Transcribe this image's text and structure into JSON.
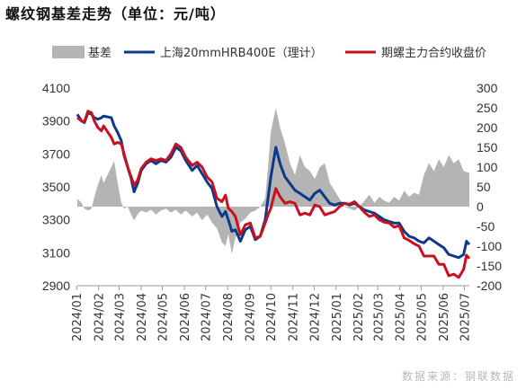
{
  "title": "螺纹钢基差走势（单位：元/吨）",
  "source": "数据来源：钢联数据",
  "chart_data": {
    "type": "line+area",
    "x": [
      "2024/01",
      "2024/02",
      "2024/03",
      "2024/04",
      "2024/05",
      "2024/06",
      "2024/07",
      "2024/08",
      "2024/09",
      "2024/10",
      "2024/11",
      "2024/12",
      "2025/01",
      "2025/02",
      "2025/03",
      "2025/04",
      "2025/05",
      "2025/06",
      "2025/07"
    ],
    "x_range": [
      "2024/01/02",
      "2025/07/08"
    ],
    "yleft": {
      "min": 2900,
      "max": 4100,
      "ticks": [
        2900,
        3100,
        3300,
        3500,
        3700,
        3900,
        4100
      ]
    },
    "yright": {
      "min": -200,
      "max": 300,
      "ticks": [
        -200,
        -150,
        -100,
        -50,
        0,
        50,
        100,
        150,
        200,
        250,
        300
      ]
    },
    "legend": {
      "position": "top"
    },
    "series": [
      {
        "name": "基差",
        "type": "area",
        "axis": "right",
        "color": "#b4b4b4",
        "points": [
          [
            "2024/01/02",
            20
          ],
          [
            "2024/01/08",
            10
          ],
          [
            "2024/01/12",
            -5
          ],
          [
            "2024/01/17",
            -10
          ],
          [
            "2024/01/22",
            -5
          ],
          [
            "2024/01/26",
            25
          ],
          [
            "2024/01/31",
            55
          ],
          [
            "2024/02/05",
            80
          ],
          [
            "2024/02/08",
            60
          ],
          [
            "2024/02/19",
            100
          ],
          [
            "2024/02/23",
            115
          ],
          [
            "2024/02/28",
            60
          ],
          [
            "2024/03/04",
            10
          ],
          [
            "2024/03/08",
            -5
          ],
          [
            "2024/03/13",
            0
          ],
          [
            "2024/03/18",
            -20
          ],
          [
            "2024/03/22",
            -35
          ],
          [
            "2024/03/27",
            -20
          ],
          [
            "2024/04/01",
            -10
          ],
          [
            "2024/04/08",
            -15
          ],
          [
            "2024/04/15",
            -8
          ],
          [
            "2024/04/22",
            -20
          ],
          [
            "2024/04/29",
            -10
          ],
          [
            "2024/05/06",
            -5
          ],
          [
            "2024/05/13",
            -15
          ],
          [
            "2024/05/20",
            -8
          ],
          [
            "2024/05/27",
            -20
          ],
          [
            "2024/06/03",
            -10
          ],
          [
            "2024/06/12",
            -25
          ],
          [
            "2024/06/19",
            -15
          ],
          [
            "2024/06/26",
            -35
          ],
          [
            "2024/07/03",
            -20
          ],
          [
            "2024/07/10",
            -40
          ],
          [
            "2024/07/17",
            -55
          ],
          [
            "2024/07/24",
            -90
          ],
          [
            "2024/07/29",
            -100
          ],
          [
            "2024/08/02",
            -70
          ],
          [
            "2024/08/07",
            -120
          ],
          [
            "2024/08/12",
            -80
          ],
          [
            "2024/08/19",
            -40
          ],
          [
            "2024/08/26",
            -30
          ],
          [
            "2024/09/02",
            -15
          ],
          [
            "2024/09/09",
            -10
          ],
          [
            "2024/09/16",
            0
          ],
          [
            "2024/09/23",
            20
          ],
          [
            "2024/09/27",
            100
          ],
          [
            "2024/10/01",
            190
          ],
          [
            "2024/10/08",
            250
          ],
          [
            "2024/10/14",
            200
          ],
          [
            "2024/10/21",
            160
          ],
          [
            "2024/10/28",
            110
          ],
          [
            "2024/11/04",
            80
          ],
          [
            "2024/11/11",
            130
          ],
          [
            "2024/11/18",
            100
          ],
          [
            "2024/11/25",
            90
          ],
          [
            "2024/12/02",
            70
          ],
          [
            "2024/12/09",
            100
          ],
          [
            "2024/12/16",
            110
          ],
          [
            "2024/12/23",
            60
          ],
          [
            "2024/12/30",
            40
          ],
          [
            "2025/01/06",
            20
          ],
          [
            "2025/01/13",
            0
          ],
          [
            "2025/01/20",
            -5
          ],
          [
            "2025/01/27",
            -10
          ],
          [
            "2025/02/03",
            0
          ],
          [
            "2025/02/10",
            15
          ],
          [
            "2025/02/17",
            30
          ],
          [
            "2025/02/24",
            10
          ],
          [
            "2025/03/03",
            25
          ],
          [
            "2025/03/10",
            15
          ],
          [
            "2025/03/17",
            10
          ],
          [
            "2025/03/24",
            25
          ],
          [
            "2025/03/31",
            15
          ],
          [
            "2025/04/07",
            40
          ],
          [
            "2025/04/14",
            25
          ],
          [
            "2025/04/21",
            35
          ],
          [
            "2025/04/28",
            30
          ],
          [
            "2025/05/05",
            80
          ],
          [
            "2025/05/12",
            110
          ],
          [
            "2025/05/19",
            90
          ],
          [
            "2025/05/26",
            120
          ],
          [
            "2025/06/02",
            100
          ],
          [
            "2025/06/09",
            130
          ],
          [
            "2025/06/16",
            110
          ],
          [
            "2025/06/23",
            120
          ],
          [
            "2025/06/30",
            90
          ],
          [
            "2025/07/08",
            85
          ]
        ]
      },
      {
        "name": "上海20mmHRB400E（理计）",
        "type": "line",
        "axis": "left",
        "color": "#0b3a8c",
        "points": [
          [
            "2024/01/02",
            3940
          ],
          [
            "2024/01/08",
            3900
          ],
          [
            "2024/01/12",
            3890
          ],
          [
            "2024/01/17",
            3950
          ],
          [
            "2024/01/22",
            3940
          ],
          [
            "2024/01/26",
            3920
          ],
          [
            "2024/01/31",
            3910
          ],
          [
            "2024/02/05",
            3920
          ],
          [
            "2024/02/08",
            3930
          ],
          [
            "2024/02/19",
            3920
          ],
          [
            "2024/02/23",
            3870
          ],
          [
            "2024/02/28",
            3830
          ],
          [
            "2024/03/04",
            3780
          ],
          [
            "2024/03/08",
            3690
          ],
          [
            "2024/03/13",
            3620
          ],
          [
            "2024/03/18",
            3550
          ],
          [
            "2024/03/22",
            3470
          ],
          [
            "2024/03/27",
            3520
          ],
          [
            "2024/04/01",
            3600
          ],
          [
            "2024/04/08",
            3640
          ],
          [
            "2024/04/15",
            3660
          ],
          [
            "2024/04/22",
            3640
          ],
          [
            "2024/04/29",
            3660
          ],
          [
            "2024/05/06",
            3650
          ],
          [
            "2024/05/13",
            3680
          ],
          [
            "2024/05/20",
            3740
          ],
          [
            "2024/05/27",
            3720
          ],
          [
            "2024/06/03",
            3660
          ],
          [
            "2024/06/12",
            3600
          ],
          [
            "2024/06/19",
            3630
          ],
          [
            "2024/06/26",
            3580
          ],
          [
            "2024/07/03",
            3530
          ],
          [
            "2024/07/10",
            3490
          ],
          [
            "2024/07/17",
            3380
          ],
          [
            "2024/07/24",
            3320
          ],
          [
            "2024/07/29",
            3350
          ],
          [
            "2024/08/02",
            3300
          ],
          [
            "2024/08/07",
            3230
          ],
          [
            "2024/08/12",
            3240
          ],
          [
            "2024/08/19",
            3170
          ],
          [
            "2024/08/26",
            3240
          ],
          [
            "2024/09/02",
            3260
          ],
          [
            "2024/09/09",
            3180
          ],
          [
            "2024/09/16",
            3200
          ],
          [
            "2024/09/23",
            3300
          ],
          [
            "2024/09/27",
            3430
          ],
          [
            "2024/10/01",
            3560
          ],
          [
            "2024/10/08",
            3740
          ],
          [
            "2024/10/14",
            3640
          ],
          [
            "2024/10/21",
            3560
          ],
          [
            "2024/10/28",
            3520
          ],
          [
            "2024/11/04",
            3480
          ],
          [
            "2024/11/11",
            3460
          ],
          [
            "2024/11/18",
            3440
          ],
          [
            "2024/11/25",
            3420
          ],
          [
            "2024/12/02",
            3460
          ],
          [
            "2024/12/09",
            3480
          ],
          [
            "2024/12/16",
            3440
          ],
          [
            "2024/12/23",
            3400
          ],
          [
            "2024/12/30",
            3390
          ],
          [
            "2025/01/06",
            3400
          ],
          [
            "2025/01/13",
            3400
          ],
          [
            "2025/01/20",
            3390
          ],
          [
            "2025/01/27",
            3400
          ],
          [
            "2025/02/03",
            3380
          ],
          [
            "2025/02/10",
            3360
          ],
          [
            "2025/02/17",
            3350
          ],
          [
            "2025/02/24",
            3340
          ],
          [
            "2025/03/03",
            3320
          ],
          [
            "2025/03/10",
            3300
          ],
          [
            "2025/03/17",
            3290
          ],
          [
            "2025/03/24",
            3280
          ],
          [
            "2025/03/31",
            3280
          ],
          [
            "2025/04/07",
            3230
          ],
          [
            "2025/04/14",
            3200
          ],
          [
            "2025/04/21",
            3190
          ],
          [
            "2025/04/28",
            3170
          ],
          [
            "2025/05/05",
            3160
          ],
          [
            "2025/05/12",
            3190
          ],
          [
            "2025/05/19",
            3170
          ],
          [
            "2025/05/26",
            3150
          ],
          [
            "2025/06/02",
            3130
          ],
          [
            "2025/06/09",
            3090
          ],
          [
            "2025/06/16",
            3080
          ],
          [
            "2025/06/23",
            3070
          ],
          [
            "2025/06/30",
            3090
          ],
          [
            "2025/07/04",
            3170
          ],
          [
            "2025/07/08",
            3150
          ]
        ]
      },
      {
        "name": "期螺主力合约收盘价",
        "type": "line",
        "axis": "left",
        "color": "#c8101e",
        "points": [
          [
            "2024/01/02",
            3920
          ],
          [
            "2024/01/08",
            3900
          ],
          [
            "2024/01/12",
            3895
          ],
          [
            "2024/01/17",
            3960
          ],
          [
            "2024/01/22",
            3950
          ],
          [
            "2024/01/26",
            3900
          ],
          [
            "2024/01/31",
            3860
          ],
          [
            "2024/02/05",
            3840
          ],
          [
            "2024/02/08",
            3870
          ],
          [
            "2024/02/19",
            3800
          ],
          [
            "2024/02/23",
            3760
          ],
          [
            "2024/02/28",
            3770
          ],
          [
            "2024/03/04",
            3760
          ],
          [
            "2024/03/08",
            3700
          ],
          [
            "2024/03/13",
            3620
          ],
          [
            "2024/03/18",
            3560
          ],
          [
            "2024/03/22",
            3510
          ],
          [
            "2024/03/27",
            3540
          ],
          [
            "2024/04/01",
            3610
          ],
          [
            "2024/04/08",
            3650
          ],
          [
            "2024/04/15",
            3670
          ],
          [
            "2024/04/22",
            3660
          ],
          [
            "2024/04/29",
            3670
          ],
          [
            "2024/05/06",
            3660
          ],
          [
            "2024/05/13",
            3700
          ],
          [
            "2024/05/20",
            3760
          ],
          [
            "2024/05/27",
            3740
          ],
          [
            "2024/06/03",
            3680
          ],
          [
            "2024/06/12",
            3630
          ],
          [
            "2024/06/19",
            3650
          ],
          [
            "2024/06/26",
            3620
          ],
          [
            "2024/07/03",
            3560
          ],
          [
            "2024/07/10",
            3530
          ],
          [
            "2024/07/17",
            3430
          ],
          [
            "2024/07/24",
            3410
          ],
          [
            "2024/07/29",
            3450
          ],
          [
            "2024/08/02",
            3370
          ],
          [
            "2024/08/07",
            3350
          ],
          [
            "2024/08/12",
            3320
          ],
          [
            "2024/08/19",
            3210
          ],
          [
            "2024/08/26",
            3270
          ],
          [
            "2024/09/02",
            3280
          ],
          [
            "2024/09/09",
            3190
          ],
          [
            "2024/09/16",
            3200
          ],
          [
            "2024/09/23",
            3280
          ],
          [
            "2024/09/27",
            3330
          ],
          [
            "2024/10/01",
            3370
          ],
          [
            "2024/10/08",
            3490
          ],
          [
            "2024/10/14",
            3440
          ],
          [
            "2024/10/21",
            3400
          ],
          [
            "2024/10/28",
            3410
          ],
          [
            "2024/11/04",
            3400
          ],
          [
            "2024/11/11",
            3330
          ],
          [
            "2024/11/18",
            3340
          ],
          [
            "2024/11/25",
            3330
          ],
          [
            "2024/12/02",
            3390
          ],
          [
            "2024/12/09",
            3380
          ],
          [
            "2024/12/16",
            3330
          ],
          [
            "2024/12/23",
            3340
          ],
          [
            "2024/12/30",
            3350
          ],
          [
            "2025/01/06",
            3380
          ],
          [
            "2025/01/13",
            3400
          ],
          [
            "2025/01/20",
            3395
          ],
          [
            "2025/01/27",
            3410
          ],
          [
            "2025/02/03",
            3380
          ],
          [
            "2025/02/10",
            3345
          ],
          [
            "2025/02/17",
            3320
          ],
          [
            "2025/02/24",
            3330
          ],
          [
            "2025/03/03",
            3300
          ],
          [
            "2025/03/10",
            3285
          ],
          [
            "2025/03/17",
            3280
          ],
          [
            "2025/03/24",
            3255
          ],
          [
            "2025/03/31",
            3265
          ],
          [
            "2025/04/07",
            3190
          ],
          [
            "2025/04/14",
            3175
          ],
          [
            "2025/04/21",
            3155
          ],
          [
            "2025/04/28",
            3140
          ],
          [
            "2025/05/05",
            3080
          ],
          [
            "2025/05/12",
            3080
          ],
          [
            "2025/05/19",
            3080
          ],
          [
            "2025/05/26",
            3030
          ],
          [
            "2025/06/02",
            3030
          ],
          [
            "2025/06/09",
            2960
          ],
          [
            "2025/06/16",
            2970
          ],
          [
            "2025/06/23",
            2950
          ],
          [
            "2025/06/30",
            3000
          ],
          [
            "2025/07/04",
            3085
          ],
          [
            "2025/07/08",
            3065
          ]
        ]
      }
    ]
  }
}
